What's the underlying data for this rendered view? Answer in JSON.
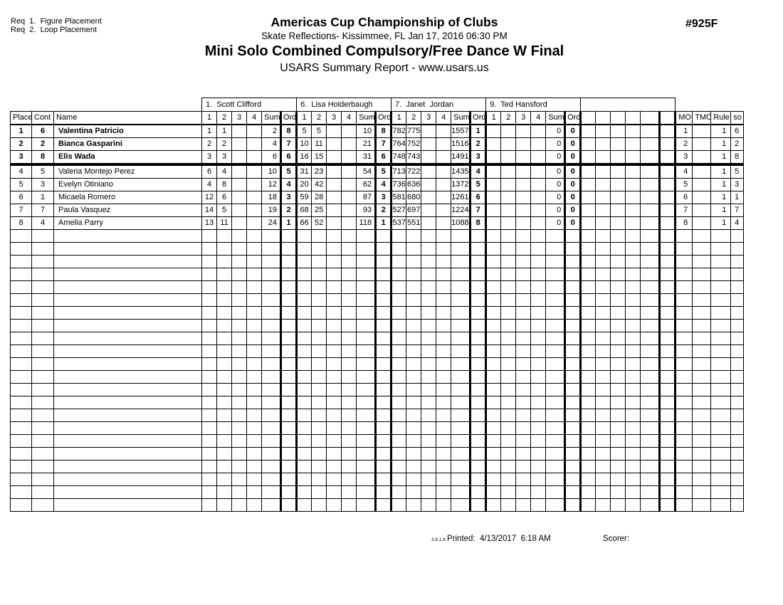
{
  "header": {
    "req_lines": "Req  1.  Figure Placement\nReq  2.  Loop Placement",
    "title": "Americas Cup Championship of Clubs",
    "venue_line": "Skate Reflections- Kissimmee, FL  Jan 17, 2016  06:30 PM",
    "event_line": "Mini Solo Combined Compulsory/Free Dance W Final",
    "report_line": "USARS Summary Report - www.usars.us",
    "event_number": "#925F"
  },
  "table": {
    "left_col_headers": [
      "Place",
      "Cont",
      "Name"
    ],
    "judges": [
      {
        "label": "1.  Scott Clifford",
        "col_labels": [
          "1",
          "2",
          "3",
          "4",
          "Sum",
          "Ord"
        ]
      },
      {
        "label": "6.  Lisa Holderbaugh",
        "col_labels": [
          "1",
          "2",
          "3",
          "4",
          "Sum",
          "Ord"
        ]
      },
      {
        "label": "7.  Janet  Jordan",
        "col_labels": [
          "1",
          "2",
          "3",
          "4",
          "Sum",
          "Ord"
        ]
      },
      {
        "label": "9.  Ted Hansford",
        "col_labels": [
          "1",
          "2",
          "3",
          "4",
          "Sum",
          "Ord"
        ]
      },
      {
        "label": "",
        "col_labels": [
          "",
          "",
          "",
          "",
          "",
          ""
        ]
      }
    ],
    "right_col_headers": [
      "MO",
      "TMO",
      "Rule",
      "so"
    ],
    "rows": [
      {
        "place": "1",
        "cont": "6",
        "name": "Valentina Patricio",
        "bold": true,
        "section_end": false,
        "scores": [
          [
            "1",
            "1",
            "",
            "",
            "2",
            "8"
          ],
          [
            "5",
            "5",
            "",
            "",
            "10",
            "8"
          ],
          [
            "782",
            "775",
            "",
            "",
            "1557",
            "1"
          ],
          [
            "",
            "",
            "",
            "",
            "0",
            "0"
          ],
          [
            "",
            "",
            "",
            "",
            "",
            ""
          ]
        ],
        "mo": "1",
        "tmo": "",
        "rule": "1",
        "so": "6"
      },
      {
        "place": "2",
        "cont": "2",
        "name": "Bianca Gasparini",
        "bold": true,
        "section_end": false,
        "scores": [
          [
            "2",
            "2",
            "",
            "",
            "4",
            "7"
          ],
          [
            "10",
            "11",
            "",
            "",
            "21",
            "7"
          ],
          [
            "764",
            "752",
            "",
            "",
            "1516",
            "2"
          ],
          [
            "",
            "",
            "",
            "",
            "0",
            "0"
          ],
          [
            "",
            "",
            "",
            "",
            "",
            ""
          ]
        ],
        "mo": "2",
        "tmo": "",
        "rule": "1",
        "so": "2"
      },
      {
        "place": "3",
        "cont": "8",
        "name": "Elis Wada",
        "bold": true,
        "section_end": true,
        "scores": [
          [
            "3",
            "3",
            "",
            "",
            "6",
            "6"
          ],
          [
            "16",
            "15",
            "",
            "",
            "31",
            "6"
          ],
          [
            "748",
            "743",
            "",
            "",
            "1491",
            "3"
          ],
          [
            "",
            "",
            "",
            "",
            "0",
            "0"
          ],
          [
            "",
            "",
            "",
            "",
            "",
            ""
          ]
        ],
        "mo": "3",
        "tmo": "",
        "rule": "1",
        "so": "8"
      },
      {
        "place": "4",
        "cont": "5",
        "name": "Valeria Montejo Perez",
        "bold": false,
        "section_end": false,
        "scores": [
          [
            "6",
            "4",
            "",
            "",
            "10",
            "5"
          ],
          [
            "31",
            "23",
            "",
            "",
            "54",
            "5"
          ],
          [
            "713",
            "722",
            "",
            "",
            "1435",
            "4"
          ],
          [
            "",
            "",
            "",
            "",
            "0",
            "0"
          ],
          [
            "",
            "",
            "",
            "",
            "",
            ""
          ]
        ],
        "mo": "4",
        "tmo": "",
        "rule": "1",
        "so": "5"
      },
      {
        "place": "5",
        "cont": "3",
        "name": "Evelyn Otiniano",
        "bold": false,
        "section_end": false,
        "scores": [
          [
            "4",
            "8",
            "",
            "",
            "12",
            "4"
          ],
          [
            "20",
            "42",
            "",
            "",
            "62",
            "4"
          ],
          [
            "736",
            "636",
            "",
            "",
            "1372",
            "5"
          ],
          [
            "",
            "",
            "",
            "",
            "0",
            "0"
          ],
          [
            "",
            "",
            "",
            "",
            "",
            ""
          ]
        ],
        "mo": "5",
        "tmo": "",
        "rule": "1",
        "so": "3"
      },
      {
        "place": "6",
        "cont": "1",
        "name": "Micaela Romero",
        "bold": false,
        "section_end": false,
        "scores": [
          [
            "12",
            "6",
            "",
            "",
            "18",
            "3"
          ],
          [
            "59",
            "28",
            "",
            "",
            "87",
            "3"
          ],
          [
            "581",
            "680",
            "",
            "",
            "1261",
            "6"
          ],
          [
            "",
            "",
            "",
            "",
            "0",
            "0"
          ],
          [
            "",
            "",
            "",
            "",
            "",
            ""
          ]
        ],
        "mo": "6",
        "tmo": "",
        "rule": "1",
        "so": "1"
      },
      {
        "place": "7",
        "cont": "7",
        "name": "Paula Vasquez",
        "bold": false,
        "section_end": false,
        "scores": [
          [
            "14",
            "5",
            "",
            "",
            "19",
            "2"
          ],
          [
            "68",
            "25",
            "",
            "",
            "93",
            "2"
          ],
          [
            "527",
            "697",
            "",
            "",
            "1224",
            "7"
          ],
          [
            "",
            "",
            "",
            "",
            "0",
            "0"
          ],
          [
            "",
            "",
            "",
            "",
            "",
            ""
          ]
        ],
        "mo": "7",
        "tmo": "",
        "rule": "1",
        "so": "7"
      },
      {
        "place": "8",
        "cont": "4",
        "name": "Amelia Parry",
        "bold": false,
        "section_end": false,
        "scores": [
          [
            "13",
            "11",
            "",
            "",
            "24",
            "1"
          ],
          [
            "66",
            "52",
            "",
            "",
            "118",
            "1"
          ],
          [
            "537",
            "551",
            "",
            "",
            "1088",
            "8"
          ],
          [
            "",
            "",
            "",
            "",
            "0",
            "0"
          ],
          [
            "",
            "",
            "",
            "",
            "",
            ""
          ]
        ],
        "mo": "8",
        "tmo": "",
        "rule": "1",
        "so": "4"
      }
    ],
    "empty_rows": 22
  },
  "footer": {
    "version": "3.8.1.8",
    "printed": "Printed:  4/13/2017  6:18 AM",
    "scorer": "Scorer:"
  }
}
